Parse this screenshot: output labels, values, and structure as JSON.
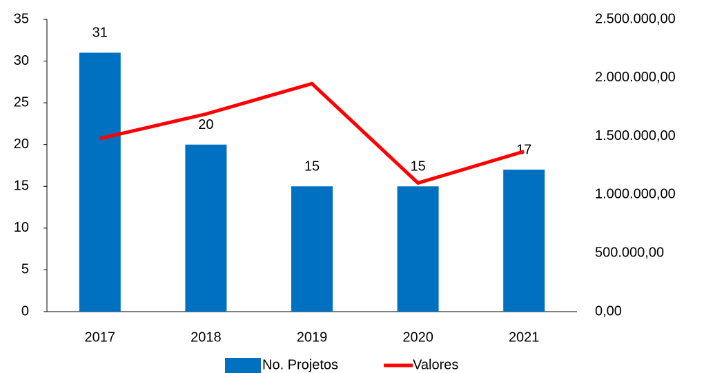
{
  "chart_data": {
    "type": "bar",
    "categories": [
      "2017",
      "2018",
      "2019",
      "2020",
      "2021"
    ],
    "series": [
      {
        "name": "No. Projetos",
        "type": "bar",
        "color": "#0070c0",
        "values": [
          31,
          20,
          15,
          15,
          17
        ]
      },
      {
        "name": "Valores",
        "type": "line",
        "axis": "y2",
        "color": "#ff0000",
        "values": [
          1480000,
          1690000,
          1950000,
          1100000,
          1370000
        ]
      }
    ],
    "ylim": [
      0,
      35
    ],
    "yticks": [
      0,
      5,
      10,
      15,
      20,
      25,
      30,
      35
    ],
    "y2lim": [
      0,
      2500000
    ],
    "y2ticks": [
      {
        "value": 0,
        "label": "0,00"
      },
      {
        "value": 500000,
        "label": "500.000,00"
      },
      {
        "value": 1000000,
        "label": "1.000.000,00"
      },
      {
        "value": 1500000,
        "label": "1.500.000,00"
      },
      {
        "value": 2000000,
        "label": "2.000.000,00"
      },
      {
        "value": 2500000,
        "label": "2.500.000,00"
      }
    ],
    "grid": false,
    "legend": "bottom"
  }
}
